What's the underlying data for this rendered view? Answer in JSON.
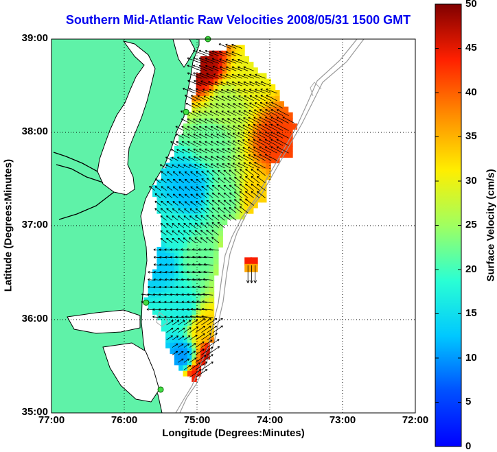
{
  "title": "Southern Mid-Atlantic Raw Velocities 2008/05/31 1500 GMT",
  "axes": {
    "xlabel": "Longitude (Degrees:Minutes)",
    "ylabel": "Latitude (Degrees:Minutes)",
    "xticks": [
      "77:00",
      "76:00",
      "75:00",
      "74:00",
      "73:00",
      "72:00"
    ],
    "yticks": [
      "39:00",
      "38:00",
      "37:00",
      "36:00",
      "35:00"
    ],
    "xlim": [
      -77,
      -72
    ],
    "ylim": [
      35,
      39
    ],
    "grid": "dotted"
  },
  "colorbar": {
    "label": "Surface Velocity (cm/s)",
    "ticks": [
      "50",
      "45",
      "40",
      "35",
      "30",
      "25",
      "20",
      "15",
      "10",
      "5",
      "0"
    ],
    "range": [
      0,
      50
    ],
    "colormap": "jet"
  },
  "colors": {
    "title": "#0000ee",
    "land": "#5ff2a8",
    "coastline": "#000000",
    "bathymetry": "#999999",
    "station": "#44dd44"
  },
  "chart_data": {
    "type": "heatmap",
    "title": "Southern Mid-Atlantic Raw Velocities 2008/05/31 1500 GMT",
    "xlabel": "Longitude (Degrees:Minutes)",
    "ylabel": "Latitude (Degrees:Minutes)",
    "xlim": [
      -77,
      -72
    ],
    "ylim": [
      35,
      39
    ],
    "value_label": "Surface Velocity (cm/s)",
    "value_range": [
      0,
      50
    ],
    "regions": [
      {
        "lon": -74.9,
        "lat": 38.7,
        "value": 48
      },
      {
        "lon": -74.3,
        "lat": 38.6,
        "value": 30
      },
      {
        "lon": -74.6,
        "lat": 38.3,
        "value": 26
      },
      {
        "lon": -73.9,
        "lat": 37.9,
        "value": 42
      },
      {
        "lon": -74.8,
        "lat": 37.9,
        "value": 22
      },
      {
        "lon": -75.1,
        "lat": 37.4,
        "value": 12
      },
      {
        "lon": -74.2,
        "lat": 37.3,
        "value": 33
      },
      {
        "lon": -74.6,
        "lat": 37.3,
        "value": 22
      },
      {
        "lon": -75.3,
        "lat": 36.9,
        "value": 18
      },
      {
        "lon": -75.0,
        "lat": 36.7,
        "value": 22
      },
      {
        "lon": -75.5,
        "lat": 36.6,
        "value": 13
      },
      {
        "lon": -74.3,
        "lat": 36.6,
        "value": 42
      },
      {
        "lon": -75.2,
        "lat": 36.1,
        "value": 17
      },
      {
        "lon": -74.9,
        "lat": 35.9,
        "value": 33
      },
      {
        "lon": -75.2,
        "lat": 35.6,
        "value": 10
      },
      {
        "lon": -74.8,
        "lat": 35.6,
        "value": 47
      },
      {
        "lon": -75.0,
        "lat": 35.4,
        "value": 44
      }
    ],
    "stations": [
      {
        "lon": -74.85,
        "lat": 39.0
      },
      {
        "lon": -75.15,
        "lat": 38.22
      },
      {
        "lon": -75.7,
        "lat": 36.18
      },
      {
        "lon": -75.5,
        "lat": 35.25
      }
    ]
  }
}
